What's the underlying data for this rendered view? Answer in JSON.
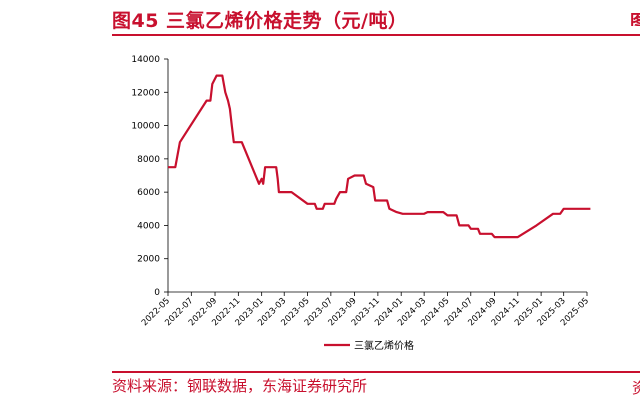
{
  "figure": {
    "title": "图45  三氯乙烯价格走势（元/吨）",
    "source": "资料来源：钢联数据，东海证券研究所",
    "next_figure_clip": "图",
    "next_source_clip": "资"
  },
  "colors": {
    "accent": "#c8102e",
    "series": "#c8102e"
  },
  "chart_data": {
    "type": "line",
    "ylim": [
      0,
      14000
    ],
    "yticks": [
      0,
      2000,
      4000,
      6000,
      8000,
      10000,
      12000,
      14000
    ],
    "xticks": [
      "2022-05",
      "2022-07",
      "2022-09",
      "2022-11",
      "2023-01",
      "2023-03",
      "2023-05",
      "2023-07",
      "2023-09",
      "2023-11",
      "2024-01",
      "2024-03",
      "2024-05",
      "2024-07",
      "2024-09",
      "2024-11",
      "2025-01",
      "2025-03",
      "2025-05"
    ],
    "grid": false,
    "legend": "bottom",
    "series": [
      {
        "name": "三氯乙烯价格",
        "points": [
          [
            "2022-05-01",
            7500
          ],
          [
            "2022-05-20",
            7500
          ],
          [
            "2022-06-01",
            9000
          ],
          [
            "2022-08-10",
            11500
          ],
          [
            "2022-08-20",
            11500
          ],
          [
            "2022-08-25",
            12500
          ],
          [
            "2022-09-05",
            13000
          ],
          [
            "2022-09-20",
            13000
          ],
          [
            "2022-09-28",
            12000
          ],
          [
            "2022-10-05",
            11500
          ],
          [
            "2022-10-10",
            11000
          ],
          [
            "2022-10-15",
            10000
          ],
          [
            "2022-10-20",
            9000
          ],
          [
            "2022-11-10",
            9000
          ],
          [
            "2022-12-25",
            6500
          ],
          [
            "2023-01-01",
            6800
          ],
          [
            "2023-01-05",
            6500
          ],
          [
            "2023-01-10",
            7500
          ],
          [
            "2023-02-08",
            7500
          ],
          [
            "2023-02-12",
            6800
          ],
          [
            "2023-02-15",
            6000
          ],
          [
            "2023-03-20",
            6000
          ],
          [
            "2023-05-01",
            5300
          ],
          [
            "2023-05-20",
            5300
          ],
          [
            "2023-05-25",
            5000
          ],
          [
            "2023-06-10",
            5000
          ],
          [
            "2023-06-15",
            5300
          ],
          [
            "2023-07-10",
            5300
          ],
          [
            "2023-07-15",
            5600
          ],
          [
            "2023-07-25",
            6000
          ],
          [
            "2023-08-10",
            6000
          ],
          [
            "2023-08-15",
            6800
          ],
          [
            "2023-09-01",
            7000
          ],
          [
            "2023-09-25",
            7000
          ],
          [
            "2023-10-01",
            6500
          ],
          [
            "2023-10-20",
            6300
          ],
          [
            "2023-10-25",
            5500
          ],
          [
            "2023-11-10",
            5500
          ],
          [
            "2023-11-25",
            5500
          ],
          [
            "2023-12-01",
            5000
          ],
          [
            "2023-12-20",
            4800
          ],
          [
            "2024-01-05",
            4700
          ],
          [
            "2024-03-01",
            4700
          ],
          [
            "2024-03-10",
            4800
          ],
          [
            "2024-04-20",
            4800
          ],
          [
            "2024-05-01",
            4600
          ],
          [
            "2024-05-25",
            4600
          ],
          [
            "2024-06-01",
            4000
          ],
          [
            "2024-06-25",
            4000
          ],
          [
            "2024-07-01",
            3800
          ],
          [
            "2024-07-20",
            3800
          ],
          [
            "2024-07-25",
            3500
          ],
          [
            "2024-08-25",
            3500
          ],
          [
            "2024-09-01",
            3300
          ],
          [
            "2024-11-01",
            3300
          ],
          [
            "2024-12-20",
            4000
          ],
          [
            "2025-02-01",
            4700
          ],
          [
            "2025-02-20",
            4700
          ],
          [
            "2025-03-01",
            5000
          ],
          [
            "2025-04-01",
            5000
          ],
          [
            "2025-05-10",
            5000
          ]
        ]
      }
    ]
  }
}
